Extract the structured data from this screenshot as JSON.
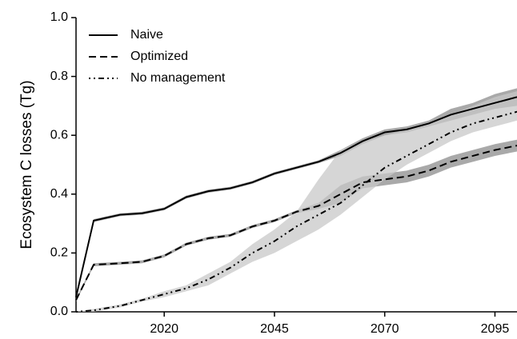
{
  "chart_data": {
    "type": "line",
    "ylabel": "Ecosystem C losses (Tg)",
    "x": [
      2000,
      2004,
      2010,
      2015,
      2020,
      2025,
      2030,
      2035,
      2040,
      2045,
      2050,
      2055,
      2060,
      2065,
      2070,
      2075,
      2080,
      2085,
      2090,
      2095,
      2100
    ],
    "xlim": [
      2000,
      2100
    ],
    "xticks": [
      2020,
      2045,
      2070,
      2095
    ],
    "ylim": [
      0,
      1
    ],
    "yticks": [
      {
        "value": 0,
        "label": "0.0"
      },
      {
        "value": 0.2,
        "label": "0.2"
      },
      {
        "value": 0.4,
        "label": "0.4"
      },
      {
        "value": 0.6,
        "label": "0.6"
      },
      {
        "value": 0.8,
        "label": "0.8"
      },
      {
        "value": 1,
        "label": "1.0"
      }
    ],
    "legend": "upper left",
    "series": [
      {
        "name": "Naive",
        "color": "#000000",
        "dash": "solid",
        "band_color": "#8c8c8c",
        "values": [
          0.05,
          0.31,
          0.33,
          0.335,
          0.35,
          0.39,
          0.41,
          0.42,
          0.44,
          0.47,
          0.49,
          0.51,
          0.54,
          0.58,
          0.61,
          0.62,
          0.64,
          0.67,
          0.69,
          0.71,
          0.73
        ],
        "lower": [
          0.045,
          0.305,
          0.325,
          0.33,
          0.345,
          0.385,
          0.405,
          0.415,
          0.435,
          0.465,
          0.485,
          0.505,
          0.53,
          0.57,
          0.6,
          0.61,
          0.63,
          0.65,
          0.67,
          0.69,
          0.7
        ],
        "upper": [
          0.055,
          0.315,
          0.335,
          0.34,
          0.355,
          0.395,
          0.415,
          0.425,
          0.445,
          0.475,
          0.495,
          0.515,
          0.55,
          0.59,
          0.62,
          0.63,
          0.65,
          0.69,
          0.71,
          0.74,
          0.76
        ]
      },
      {
        "name": "Optimized",
        "color": "#000000",
        "dash": "dashed",
        "band_color": "#8c8c8c",
        "values": [
          0.04,
          0.16,
          0.165,
          0.17,
          0.19,
          0.23,
          0.25,
          0.26,
          0.29,
          0.31,
          0.34,
          0.36,
          0.4,
          0.44,
          0.45,
          0.46,
          0.48,
          0.51,
          0.53,
          0.55,
          0.565
        ],
        "lower": [
          0.035,
          0.155,
          0.16,
          0.165,
          0.185,
          0.225,
          0.245,
          0.255,
          0.285,
          0.305,
          0.335,
          0.35,
          0.37,
          0.42,
          0.43,
          0.44,
          0.46,
          0.49,
          0.51,
          0.53,
          0.545
        ],
        "upper": [
          0.045,
          0.165,
          0.17,
          0.175,
          0.195,
          0.235,
          0.255,
          0.265,
          0.295,
          0.315,
          0.345,
          0.37,
          0.43,
          0.46,
          0.47,
          0.48,
          0.5,
          0.53,
          0.55,
          0.57,
          0.585
        ]
      },
      {
        "name": "No management",
        "color": "#000000",
        "dash": "dashdot",
        "band_color": "#c8c8c8",
        "values": [
          0,
          0.005,
          0.02,
          0.04,
          0.06,
          0.08,
          0.11,
          0.15,
          0.2,
          0.24,
          0.29,
          0.33,
          0.37,
          0.43,
          0.49,
          0.53,
          0.57,
          0.61,
          0.64,
          0.66,
          0.68
        ],
        "lower": [
          0,
          0,
          0.015,
          0.035,
          0.05,
          0.07,
          0.09,
          0.13,
          0.17,
          0.2,
          0.24,
          0.28,
          0.33,
          0.39,
          0.45,
          0.5,
          0.54,
          0.58,
          0.61,
          0.63,
          0.65
        ],
        "upper": [
          0,
          0.01,
          0.025,
          0.045,
          0.07,
          0.09,
          0.13,
          0.17,
          0.23,
          0.28,
          0.34,
          0.45,
          0.55,
          0.58,
          0.6,
          0.62,
          0.64,
          0.67,
          0.7,
          0.73,
          0.75
        ]
      }
    ]
  }
}
